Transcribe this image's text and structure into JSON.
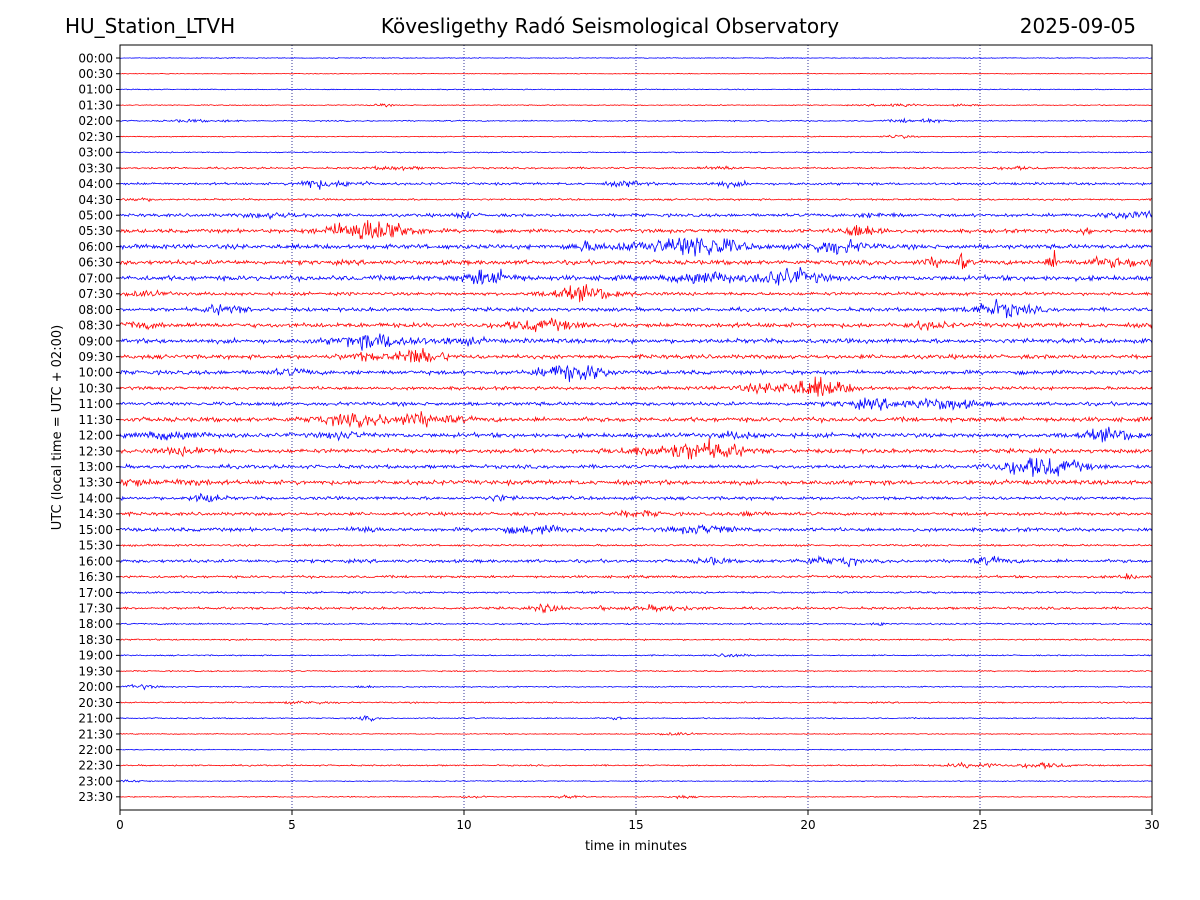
{
  "header": {
    "station": "HU_Station_LTVH",
    "observatory": "Kövesligethy Radó Seismological Observatory",
    "date": "2025-09-05"
  },
  "chart_data": {
    "type": "line",
    "title": "Kövesligethy Radó Seismological Observatory",
    "xlabel": "time in minutes",
    "ylabel": "UTC (local time = UTC + 02:00)",
    "xlim": [
      0,
      30
    ],
    "x_ticks": [
      0,
      5,
      10,
      15,
      20,
      25,
      30
    ],
    "vertical_grid_minutes": [
      5,
      10,
      15,
      20,
      25
    ],
    "grid": "vertical dotted",
    "trace_colors": [
      "#0000ff",
      "#ff0000"
    ],
    "rows": [
      {
        "label": "00:00",
        "level": 0.1,
        "events": []
      },
      {
        "label": "00:30",
        "level": 0.08,
        "events": []
      },
      {
        "label": "01:00",
        "level": 0.12,
        "events": []
      },
      {
        "label": "01:30",
        "level": 0.12,
        "events": [
          {
            "t": 7.6,
            "a": 0.3,
            "w": 0.2
          },
          {
            "t": 22.6,
            "a": 0.35,
            "w": 0.5
          },
          {
            "t": 24.5,
            "a": 0.2,
            "w": 0.3
          }
        ]
      },
      {
        "label": "02:00",
        "level": 0.15,
        "events": [
          {
            "t": 2.0,
            "a": 0.3,
            "w": 0.4
          },
          {
            "t": 3.2,
            "a": 0.2,
            "w": 0.2
          },
          {
            "t": 23.2,
            "a": 0.5,
            "w": 0.5
          }
        ]
      },
      {
        "label": "02:30",
        "level": 0.12,
        "events": [
          {
            "t": 22.6,
            "a": 0.4,
            "w": 0.3
          }
        ]
      },
      {
        "label": "03:00",
        "level": 0.15,
        "events": []
      },
      {
        "label": "03:30",
        "level": 0.22,
        "events": [
          {
            "t": 8.0,
            "a": 0.4,
            "w": 0.5
          },
          {
            "t": 17.5,
            "a": 0.35,
            "w": 0.4
          },
          {
            "t": 26.0,
            "a": 0.3,
            "w": 0.4
          }
        ]
      },
      {
        "label": "04:00",
        "level": 0.3,
        "events": [
          {
            "t": 5.6,
            "a": 1.2,
            "w": 0.3
          },
          {
            "t": 6.7,
            "a": 0.6,
            "w": 0.4
          },
          {
            "t": 14.7,
            "a": 0.5,
            "w": 0.4
          },
          {
            "t": 17.7,
            "a": 0.5,
            "w": 0.4
          }
        ]
      },
      {
        "label": "04:30",
        "level": 0.22,
        "events": [
          {
            "t": 0.5,
            "a": 0.3,
            "w": 0.4
          }
        ]
      },
      {
        "label": "05:00",
        "level": 0.38,
        "events": [
          {
            "t": 4.5,
            "a": 0.5,
            "w": 0.6
          },
          {
            "t": 10.0,
            "a": 0.8,
            "w": 0.2
          },
          {
            "t": 22.0,
            "a": 0.4,
            "w": 0.5
          },
          {
            "t": 29.5,
            "a": 0.9,
            "w": 0.6
          }
        ]
      },
      {
        "label": "05:30",
        "level": 0.45,
        "events": [
          {
            "t": 7.0,
            "a": 2.2,
            "w": 0.7
          },
          {
            "t": 7.9,
            "a": 1.2,
            "w": 0.6
          },
          {
            "t": 21.6,
            "a": 1.6,
            "w": 0.4
          },
          {
            "t": 28.1,
            "a": 1.0,
            "w": 0.1
          }
        ]
      },
      {
        "label": "06:00",
        "level": 0.55,
        "events": [
          {
            "t": 13.5,
            "a": 0.8,
            "w": 0.3
          },
          {
            "t": 15.5,
            "a": 1.0,
            "w": 1.0
          },
          {
            "t": 17.0,
            "a": 2.3,
            "w": 0.7
          },
          {
            "t": 20.8,
            "a": 1.6,
            "w": 0.6
          }
        ]
      },
      {
        "label": "06:30",
        "level": 0.55,
        "events": [
          {
            "t": 24.5,
            "a": 2.4,
            "w": 0.08
          },
          {
            "t": 27.1,
            "a": 2.8,
            "w": 0.08
          },
          {
            "t": 23.7,
            "a": 0.8,
            "w": 0.3
          },
          {
            "t": 29.0,
            "a": 0.9,
            "w": 0.8
          }
        ]
      },
      {
        "label": "07:00",
        "level": 0.6,
        "events": [
          {
            "t": 8.3,
            "a": 0.9,
            "w": 0.1
          },
          {
            "t": 10.7,
            "a": 1.8,
            "w": 0.5
          },
          {
            "t": 17.0,
            "a": 1.3,
            "w": 0.6
          },
          {
            "t": 19.4,
            "a": 2.0,
            "w": 0.6
          }
        ]
      },
      {
        "label": "07:30",
        "level": 0.4,
        "events": [
          {
            "t": 13.5,
            "a": 1.6,
            "w": 0.7
          },
          {
            "t": 0.8,
            "a": 0.5,
            "w": 0.4
          }
        ]
      },
      {
        "label": "08:00",
        "level": 0.45,
        "events": [
          {
            "t": 3.0,
            "a": 1.0,
            "w": 0.4
          },
          {
            "t": 25.6,
            "a": 1.8,
            "w": 0.6
          }
        ]
      },
      {
        "label": "08:30",
        "level": 0.55,
        "events": [
          {
            "t": 12.3,
            "a": 1.2,
            "w": 0.7
          },
          {
            "t": 0.5,
            "a": 0.6,
            "w": 0.4
          },
          {
            "t": 23.5,
            "a": 0.7,
            "w": 0.4
          }
        ]
      },
      {
        "label": "09:00",
        "level": 0.55,
        "events": [
          {
            "t": 7.5,
            "a": 1.6,
            "w": 0.8
          },
          {
            "t": 10.0,
            "a": 0.7,
            "w": 0.4
          }
        ]
      },
      {
        "label": "09:30",
        "level": 0.5,
        "events": [
          {
            "t": 8.7,
            "a": 1.8,
            "w": 0.5
          },
          {
            "t": 7.0,
            "a": 0.8,
            "w": 0.4
          }
        ]
      },
      {
        "label": "10:00",
        "level": 0.5,
        "events": [
          {
            "t": 13.2,
            "a": 2.2,
            "w": 0.6
          },
          {
            "t": 5.0,
            "a": 0.6,
            "w": 0.4
          }
        ]
      },
      {
        "label": "10:30",
        "level": 0.4,
        "events": [
          {
            "t": 19.5,
            "a": 1.2,
            "w": 1.0
          },
          {
            "t": 20.4,
            "a": 1.5,
            "w": 0.5
          }
        ]
      },
      {
        "label": "11:00",
        "level": 0.45,
        "events": [
          {
            "t": 22.0,
            "a": 0.9,
            "w": 0.8
          },
          {
            "t": 24.0,
            "a": 1.2,
            "w": 0.6
          }
        ]
      },
      {
        "label": "11:30",
        "level": 0.55,
        "events": [
          {
            "t": 6.8,
            "a": 1.1,
            "w": 0.8
          },
          {
            "t": 8.8,
            "a": 1.3,
            "w": 0.7
          }
        ]
      },
      {
        "label": "12:00",
        "level": 0.55,
        "events": [
          {
            "t": 1.5,
            "a": 0.8,
            "w": 0.6
          },
          {
            "t": 6.5,
            "a": 0.7,
            "w": 0.4
          },
          {
            "t": 18.0,
            "a": 0.6,
            "w": 0.4
          },
          {
            "t": 28.8,
            "a": 1.2,
            "w": 0.6
          }
        ]
      },
      {
        "label": "12:30",
        "level": 0.5,
        "events": [
          {
            "t": 16.0,
            "a": 1.3,
            "w": 1.0
          },
          {
            "t": 17.3,
            "a": 1.5,
            "w": 0.6
          },
          {
            "t": 2.0,
            "a": 0.7,
            "w": 0.6
          }
        ]
      },
      {
        "label": "13:00",
        "level": 0.45,
        "events": [
          {
            "t": 27.0,
            "a": 2.0,
            "w": 0.7
          },
          {
            "t": 26.0,
            "a": 0.8,
            "w": 0.6
          }
        ]
      },
      {
        "label": "13:30",
        "level": 0.55,
        "events": [
          {
            "t": 0.3,
            "a": 0.8,
            "w": 0.4
          },
          {
            "t": 2.0,
            "a": 0.6,
            "w": 0.4
          }
        ]
      },
      {
        "label": "14:00",
        "level": 0.4,
        "events": [
          {
            "t": 2.5,
            "a": 1.1,
            "w": 0.3
          },
          {
            "t": 11.0,
            "a": 0.6,
            "w": 0.3
          }
        ]
      },
      {
        "label": "14:30",
        "level": 0.4,
        "events": [
          {
            "t": 18.4,
            "a": 0.8,
            "w": 0.2
          },
          {
            "t": 15.0,
            "a": 0.6,
            "w": 0.5
          }
        ]
      },
      {
        "label": "15:00",
        "level": 0.45,
        "events": [
          {
            "t": 7.1,
            "a": 0.9,
            "w": 0.2
          },
          {
            "t": 12.0,
            "a": 0.8,
            "w": 0.7
          },
          {
            "t": 17.0,
            "a": 0.9,
            "w": 0.6
          }
        ]
      },
      {
        "label": "15:30",
        "level": 0.25,
        "events": []
      },
      {
        "label": "16:00",
        "level": 0.4,
        "events": [
          {
            "t": 21.2,
            "a": 1.2,
            "w": 0.15
          },
          {
            "t": 17.2,
            "a": 0.8,
            "w": 0.3
          },
          {
            "t": 20.3,
            "a": 0.8,
            "w": 0.4
          },
          {
            "t": 25.3,
            "a": 0.7,
            "w": 0.4
          }
        ]
      },
      {
        "label": "16:30",
        "level": 0.3,
        "events": [
          {
            "t": 29.3,
            "a": 0.6,
            "w": 0.2
          }
        ]
      },
      {
        "label": "17:00",
        "level": 0.25,
        "events": []
      },
      {
        "label": "17:30",
        "level": 0.3,
        "events": [
          {
            "t": 12.5,
            "a": 0.9,
            "w": 0.3
          },
          {
            "t": 14.0,
            "a": 1.0,
            "w": 0.05
          },
          {
            "t": 15.8,
            "a": 0.6,
            "w": 0.6
          }
        ]
      },
      {
        "label": "18:00",
        "level": 0.2,
        "events": [
          {
            "t": 22.2,
            "a": 0.4,
            "w": 0.2
          }
        ]
      },
      {
        "label": "18:30",
        "level": 0.18,
        "events": []
      },
      {
        "label": "19:00",
        "level": 0.15,
        "events": [
          {
            "t": 17.8,
            "a": 0.4,
            "w": 0.3
          }
        ]
      },
      {
        "label": "19:30",
        "level": 0.15,
        "events": []
      },
      {
        "label": "20:00",
        "level": 0.15,
        "events": [
          {
            "t": 0.6,
            "a": 0.5,
            "w": 0.3
          },
          {
            "t": 7.2,
            "a": 0.3,
            "w": 0.2
          }
        ]
      },
      {
        "label": "20:30",
        "level": 0.18,
        "events": [
          {
            "t": 5.5,
            "a": 0.3,
            "w": 0.5
          }
        ]
      },
      {
        "label": "21:00",
        "level": 0.15,
        "events": [
          {
            "t": 7.2,
            "a": 0.5,
            "w": 0.2
          },
          {
            "t": 14.5,
            "a": 0.3,
            "w": 0.2
          }
        ]
      },
      {
        "label": "21:30",
        "level": 0.12,
        "events": [
          {
            "t": 16.2,
            "a": 0.3,
            "w": 0.4
          }
        ]
      },
      {
        "label": "22:00",
        "level": 0.12,
        "events": []
      },
      {
        "label": "22:30",
        "level": 0.18,
        "events": [
          {
            "t": 24.8,
            "a": 0.6,
            "w": 0.5
          },
          {
            "t": 26.8,
            "a": 0.6,
            "w": 0.5
          }
        ]
      },
      {
        "label": "23:00",
        "level": 0.12,
        "events": [
          {
            "t": 0.3,
            "a": 0.3,
            "w": 0.3
          }
        ]
      },
      {
        "label": "23:30",
        "level": 0.12,
        "events": [
          {
            "t": 10.3,
            "a": 0.3,
            "w": 0.3
          },
          {
            "t": 13.0,
            "a": 0.3,
            "w": 0.3
          },
          {
            "t": 16.3,
            "a": 0.3,
            "w": 0.3
          }
        ]
      }
    ]
  }
}
